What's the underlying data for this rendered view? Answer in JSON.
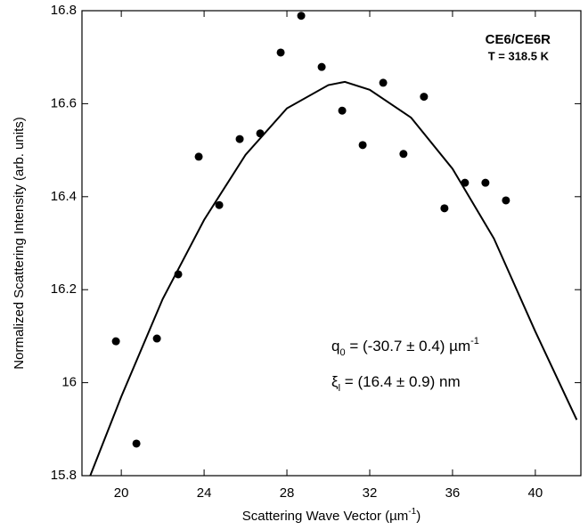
{
  "chart_data": {
    "type": "scatter",
    "x_label": {
      "main": "Scattering Wave Vector (µm",
      "sup": "-1",
      "end": ")"
    },
    "y_label": "Normalized Scattering Intensity (arb. units)",
    "annotations": {
      "sample": "CE6/CE6R",
      "temperature": "T = 318.5 K",
      "q_symbol": "q",
      "q_sub": "0",
      "q_text": " = (-30.7 ± 0.4) µm",
      "q_sup": "-1",
      "xi_symbol": "ξ",
      "xi_sub": "l",
      "xi_text": " = (16.4 ± 0.9) nm"
    },
    "xlim": [
      18.1,
      42.2
    ],
    "xticks": [
      20,
      24,
      28,
      32,
      36,
      40
    ],
    "ylim": [
      15.8,
      16.8
    ],
    "yticks": [
      15.8,
      16,
      16.2,
      16.4,
      16.6,
      16.8
    ],
    "points": {
      "color": "#000000",
      "x": [
        19.74,
        20.73,
        21.72,
        22.75,
        23.74,
        24.73,
        25.72,
        26.71,
        27.7,
        28.69,
        29.68,
        30.67,
        31.66,
        32.65,
        33.63,
        34.62,
        35.61,
        36.6,
        37.59,
        38.58
      ],
      "y": [
        16.089,
        15.869,
        16.095,
        16.233,
        16.486,
        16.382,
        16.524,
        16.536,
        16.71,
        16.789,
        16.679,
        16.585,
        16.511,
        16.645,
        16.492,
        16.615,
        16.375,
        16.43,
        16.43,
        16.392
      ]
    },
    "fit": {
      "color": "#000000",
      "x": [
        18.5,
        20,
        22,
        24,
        26,
        28,
        30,
        30.8,
        32,
        34,
        36,
        38,
        40,
        42
      ],
      "y": [
        15.8,
        15.97,
        16.18,
        16.35,
        16.49,
        16.59,
        16.64,
        16.647,
        16.63,
        16.57,
        16.46,
        16.31,
        16.11,
        15.92
      ]
    }
  }
}
